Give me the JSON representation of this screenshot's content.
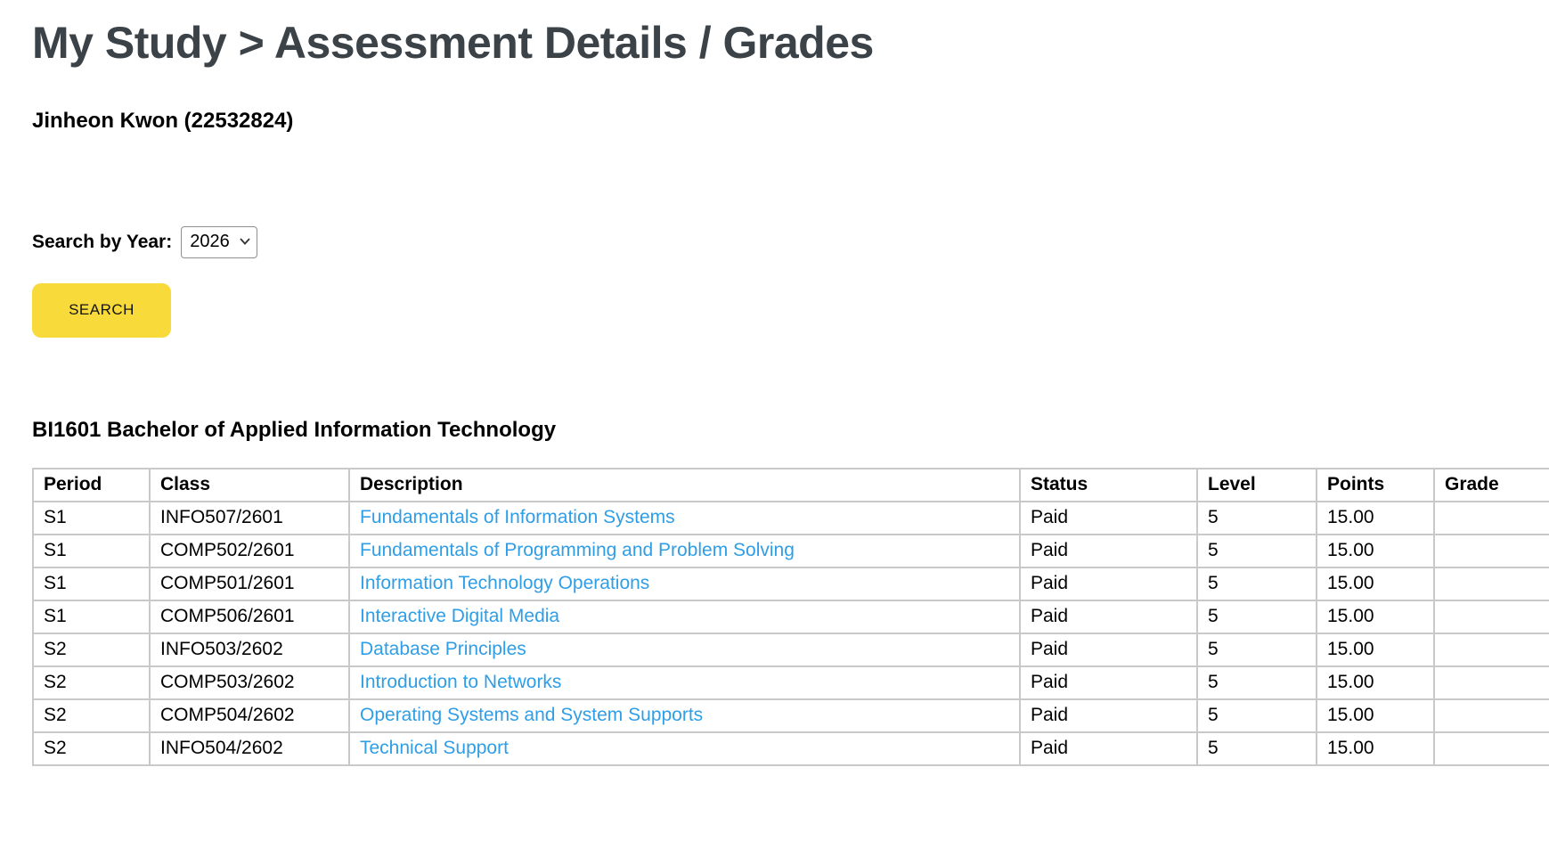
{
  "page": {
    "title": "My Study > Assessment Details / Grades",
    "student_name": "Jinheon Kwon (22532824)"
  },
  "search": {
    "label": "Search by Year:",
    "year_selected": "2026",
    "year_options": [
      "2026"
    ],
    "button_label": "SEARCH"
  },
  "program": {
    "heading": "BI1601 Bachelor of Applied Information Technology"
  },
  "table": {
    "columns": [
      "Period",
      "Class",
      "Description",
      "Status",
      "Level",
      "Points",
      "Grade"
    ],
    "rows": [
      {
        "period": "S1",
        "class": "INFO507/2601",
        "description": "Fundamentals of Information Systems",
        "status": "Paid",
        "level": "5",
        "points": "15.00",
        "grade": ""
      },
      {
        "period": "S1",
        "class": "COMP502/2601",
        "description": "Fundamentals of Programming and Problem Solving",
        "status": "Paid",
        "level": "5",
        "points": "15.00",
        "grade": ""
      },
      {
        "period": "S1",
        "class": "COMP501/2601",
        "description": "Information Technology Operations",
        "status": "Paid",
        "level": "5",
        "points": "15.00",
        "grade": ""
      },
      {
        "period": "S1",
        "class": "COMP506/2601",
        "description": "Interactive Digital Media",
        "status": "Paid",
        "level": "5",
        "points": "15.00",
        "grade": ""
      },
      {
        "period": "S2",
        "class": "INFO503/2602",
        "description": "Database Principles",
        "status": "Paid",
        "level": "5",
        "points": "15.00",
        "grade": ""
      },
      {
        "period": "S2",
        "class": "COMP503/2602",
        "description": "Introduction to Networks",
        "status": "Paid",
        "level": "5",
        "points": "15.00",
        "grade": ""
      },
      {
        "period": "S2",
        "class": "COMP504/2602",
        "description": "Operating Systems and System Supports",
        "status": "Paid",
        "level": "5",
        "points": "15.00",
        "grade": ""
      },
      {
        "period": "S2",
        "class": "INFO504/2602",
        "description": "Technical Support",
        "status": "Paid",
        "level": "5",
        "points": "15.00",
        "grade": ""
      }
    ]
  },
  "colors": {
    "accent_yellow": "#f8da3b",
    "link_blue": "#2f9ee6",
    "title_gray": "#3b4248",
    "table_border": "#c9c9c9"
  }
}
